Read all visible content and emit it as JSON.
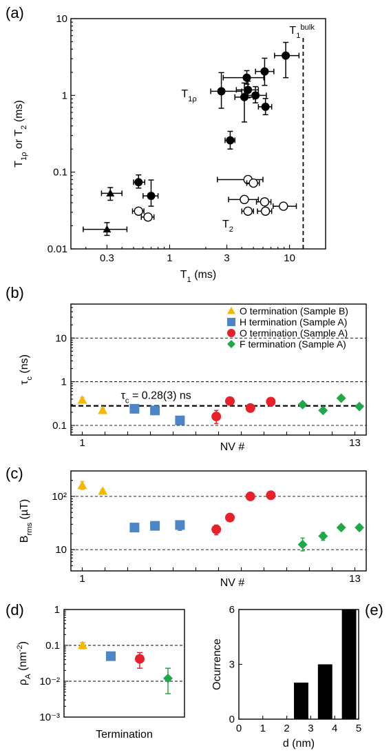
{
  "colors": {
    "O_sampleB": "#f5b800",
    "H_sampleA": "#4d86c6",
    "O_sampleA": "#e8202a",
    "F_sampleA": "#1ea84a",
    "filled": "#000000",
    "open": "#ffffff"
  },
  "chart_data": [
    {
      "panel": "(a)",
      "type": "scatter",
      "xlabel": "T₁ (ms)",
      "ylabel": "T₁ᵨ or T₂ (ms)",
      "xscale": "log",
      "yscale": "log",
      "xlim": [
        0.15,
        20
      ],
      "ylim": [
        0.01,
        10
      ],
      "xticks": [
        0.3,
        1,
        3,
        10
      ],
      "xtick_labels": [
        "0.3",
        "1",
        "3",
        "10"
      ],
      "yticks": [
        0.01,
        0.1,
        1,
        10
      ],
      "ytick_labels": [
        "0.01",
        "0.1",
        "1",
        "10"
      ],
      "annotations": {
        "t1rho": "T1ρ",
        "t2": "T2",
        "bulk": "T1bulk"
      },
      "bulk_line_x": 13,
      "series": [
        {
          "marker": "filled-circle",
          "points": [
            {
              "x": 0.55,
              "y": 0.074,
              "xerr": [
                0.05,
                0.07
              ],
              "yerr": [
                0.012,
                0.018
              ]
            },
            {
              "x": 0.7,
              "y": 0.049,
              "xerr": [
                0.1,
                0.1
              ],
              "yerr": [
                0.013,
                0.03
              ]
            },
            {
              "x": 3.2,
              "y": 0.26,
              "xerr": [
                0.3,
                0.3
              ],
              "yerr": [
                0.06,
                0.08
              ]
            },
            {
              "x": 2.7,
              "y": 1.13,
              "xerr": [
                0.5,
                1.3
              ],
              "yerr": [
                0.45,
                0.85
              ]
            },
            {
              "x": 4.4,
              "y": 1.7,
              "xerr": [
                1.6,
                1.7
              ],
              "yerr": [
                0.3,
                0.4
              ]
            },
            {
              "x": 4.5,
              "y": 1.18,
              "xerr": [
                0.9,
                1.0
              ],
              "yerr": [
                0.25,
                0.35
              ]
            },
            {
              "x": 4.2,
              "y": 0.95,
              "xerr": [
                0.7,
                0.8
              ],
              "yerr": [
                0.5,
                0.5
              ]
            },
            {
              "x": 5.2,
              "y": 1.0,
              "xerr": [
                0.9,
                1.2
              ],
              "yerr": [
                0.2,
                0.3
              ]
            },
            {
              "x": 6.2,
              "y": 2.05,
              "xerr": [
                1.0,
                1.2
              ],
              "yerr": [
                0.7,
                1.0
              ]
            },
            {
              "x": 6.3,
              "y": 0.71,
              "xerr": [
                0.8,
                0.8
              ],
              "yerr": [
                0.15,
                0.2
              ]
            },
            {
              "x": 9.3,
              "y": 3.3,
              "xerr": [
                1.8,
                2.7
              ],
              "yerr": [
                1.6,
                1.6
              ]
            }
          ]
        },
        {
          "marker": "filled-triangle",
          "points": [
            {
              "x": 0.32,
              "y": 0.053,
              "xerr": [
                0.05,
                0.08
              ],
              "yerr": [
                0.01,
                0.01
              ]
            },
            {
              "x": 0.3,
              "y": 0.018,
              "xerr": [
                0.11,
                0.14
              ],
              "yerr": [
                0.003,
                0.004
              ]
            }
          ]
        },
        {
          "marker": "open-circle",
          "points": [
            {
              "x": 0.55,
              "y": 0.031,
              "xerr": [
                0.06,
                0.06
              ],
              "yerr": [
                0,
                0
              ]
            },
            {
              "x": 0.66,
              "y": 0.026,
              "xerr": [
                0.08,
                0.08
              ],
              "yerr": [
                0,
                0
              ]
            },
            {
              "x": 4.5,
              "y": 0.08,
              "xerr": [
                2.0,
                1.5
              ],
              "yerr": [
                0,
                0
              ]
            },
            {
              "x": 5.0,
              "y": 0.072,
              "xerr": [
                0.6,
                0.6
              ],
              "yerr": [
                0,
                0
              ]
            },
            {
              "x": 4.2,
              "y": 0.044,
              "xerr": [
                1.1,
                1.3
              ],
              "yerr": [
                0,
                0
              ]
            },
            {
              "x": 6.2,
              "y": 0.041,
              "xerr": [
                0.9,
                0.8
              ],
              "yerr": [
                0,
                0
              ]
            },
            {
              "x": 4.5,
              "y": 0.031,
              "xerr": [
                0.5,
                0.5
              ],
              "yerr": [
                0,
                0
              ]
            },
            {
              "x": 6.3,
              "y": 0.031,
              "xerr": [
                0.9,
                0.8
              ],
              "yerr": [
                0,
                0
              ]
            },
            {
              "x": 8.9,
              "y": 0.036,
              "xerr": [
                1.6,
                2.5
              ],
              "yerr": [
                0,
                0
              ]
            }
          ]
        }
      ]
    },
    {
      "panel": "(b)",
      "type": "scatter",
      "xlabel": "NV #",
      "ylabel": "τc (ns)",
      "yscale": "log",
      "xlim": [
        0.5,
        13.5
      ],
      "ylim": [
        0.06,
        60
      ],
      "xtick_labels": [
        "1",
        "13"
      ],
      "ytick_labels": [
        "0.1",
        "1",
        "10"
      ],
      "gridlines_y": [
        0.1,
        1,
        10
      ],
      "reference_line": {
        "y": 0.28,
        "label": "τc = 0.28(3) ns"
      },
      "legend": [
        {
          "label": "O termination (Sample B)",
          "marker": "triangle",
          "color": "#f5b800"
        },
        {
          "label": "H termination (Sample A)",
          "marker": "square",
          "color": "#4d86c6"
        },
        {
          "label": "O termination (Sample A)",
          "marker": "circle",
          "color": "#e8202a"
        },
        {
          "label": "F termination (Sample A)",
          "marker": "diamond",
          "color": "#1ea84a"
        }
      ],
      "legend_position": "top-right",
      "series": [
        {
          "name": "O termination (Sample B)",
          "marker": "triangle",
          "color": "#f5b800",
          "x": [
            1,
            1.9
          ],
          "y": [
            0.38,
            0.22
          ],
          "yerr": [
            [
              0.05,
              0.06
            ],
            [
              0.03,
              0.03
            ]
          ]
        },
        {
          "name": "H termination (Sample A)",
          "marker": "square",
          "color": "#4d86c6",
          "x": [
            3.3,
            4.2,
            5.3
          ],
          "y": [
            0.24,
            0.22,
            0.13
          ],
          "yerr": [
            [
              0.03,
              0.03
            ],
            [
              0.02,
              0.02
            ],
            [
              0.02,
              0.02
            ]
          ]
        },
        {
          "name": "O termination (Sample A)",
          "marker": "circle",
          "color": "#e8202a",
          "x": [
            6.9,
            7.5,
            8.4,
            9.3
          ],
          "y": [
            0.16,
            0.36,
            0.25,
            0.35
          ],
          "yerr": [
            [
              0.05,
              0.06
            ],
            [
              0.02,
              0.02
            ],
            [
              0.02,
              0.02
            ],
            [
              0.02,
              0.02
            ]
          ]
        },
        {
          "name": "F termination (Sample A)",
          "marker": "diamond",
          "color": "#1ea84a",
          "x": [
            10.7,
            11.6,
            12.4,
            13.2
          ],
          "y": [
            0.3,
            0.22,
            0.42,
            0.27
          ],
          "yerr": [
            [
              0.02,
              0.02
            ],
            [
              0.02,
              0.02
            ],
            [
              0.03,
              0.03
            ],
            [
              0.02,
              0.02
            ]
          ]
        }
      ]
    },
    {
      "panel": "(c)",
      "type": "scatter",
      "xlabel": "NV #",
      "ylabel": "Brms (µT)",
      "yscale": "log",
      "xlim": [
        0.5,
        13.5
      ],
      "ylim": [
        4,
        300
      ],
      "xtick_labels": [
        "1",
        "13"
      ],
      "ytick_labels": [
        "10",
        "10²"
      ],
      "gridlines_y": [
        10,
        100
      ],
      "series": [
        {
          "name": "O termination (Sample B)",
          "marker": "triangle",
          "color": "#f5b800",
          "x": [
            1,
            1.9
          ],
          "y": [
            160,
            125
          ],
          "yerr": [
            [
              25,
              30
            ],
            [
              10,
              10
            ]
          ]
        },
        {
          "name": "H termination (Sample A)",
          "marker": "square",
          "color": "#4d86c6",
          "x": [
            3.3,
            4.2,
            5.3
          ],
          "y": [
            26,
            28,
            29
          ],
          "yerr": [
            [
              3,
              3
            ],
            [
              3,
              3
            ],
            [
              6,
              6
            ]
          ]
        },
        {
          "name": "O termination (Sample A)",
          "marker": "circle",
          "color": "#e8202a",
          "x": [
            6.9,
            7.5,
            8.4,
            9.3
          ],
          "y": [
            24,
            40,
            100,
            105
          ],
          "yerr": [
            [
              5,
              5
            ],
            [
              3,
              3
            ],
            [
              6,
              6
            ],
            [
              6,
              6
            ]
          ]
        },
        {
          "name": "F termination (Sample A)",
          "marker": "diamond",
          "color": "#1ea84a",
          "x": [
            10.7,
            11.6,
            12.4,
            13.2
          ],
          "y": [
            12.5,
            18,
            26,
            26
          ],
          "yerr": [
            [
              3,
              4
            ],
            [
              3,
              3
            ],
            [
              2,
              2
            ],
            [
              3,
              3
            ]
          ]
        }
      ]
    },
    {
      "panel": "(d)",
      "type": "scatter",
      "xlabel": "Termination",
      "ylabel": "ρA (nm⁻²)",
      "yscale": "log",
      "ylim": [
        0.001,
        1
      ],
      "ytick_labels": [
        "10⁻³",
        "10⁻²",
        "0.1",
        "1"
      ],
      "gridlines_y": [
        0.01,
        0.1
      ],
      "series": [
        {
          "name": "O termination (Sample B)",
          "marker": "triangle",
          "color": "#f5b800",
          "y": 0.1,
          "yerr": [
            0.02,
            0.02
          ]
        },
        {
          "name": "H termination (Sample A)",
          "marker": "square",
          "color": "#4d86c6",
          "y": 0.05,
          "yerr": [
            0.004,
            0.004
          ]
        },
        {
          "name": "O termination (Sample A)",
          "marker": "circle",
          "color": "#e8202a",
          "y": 0.042,
          "yerr": [
            0.019,
            0.021
          ]
        },
        {
          "name": "F termination (Sample A)",
          "marker": "diamond",
          "color": "#1ea84a",
          "y": 0.012,
          "yerr": [
            0.0075,
            0.011
          ]
        }
      ]
    },
    {
      "panel": "(e)",
      "type": "bar",
      "xlabel": "d (nm)",
      "ylabel": "Ocurrence",
      "xlim": [
        0,
        5
      ],
      "ylim": [
        0,
        6
      ],
      "xticks": [
        0,
        1,
        2,
        3,
        4,
        5
      ],
      "yticks": [
        0,
        3,
        6
      ],
      "bins": [
        [
          2.0,
          2.5
        ],
        [
          2.5,
          3.0
        ],
        [
          3.0,
          3.5
        ],
        [
          3.5,
          4.0
        ],
        [
          4.0,
          4.5
        ],
        [
          4.5,
          5.0
        ]
      ],
      "values": [
        0,
        2,
        0,
        3,
        0,
        6
      ],
      "bar_ranges": [
        [
          2.3,
          2.9
        ],
        [
          3.3,
          3.9
        ],
        [
          4.3,
          4.9
        ]
      ],
      "bar_values": [
        2,
        3,
        6
      ]
    }
  ],
  "panel_labels": [
    "(a)",
    "(b)",
    "(c)",
    "(d)",
    "(e)"
  ]
}
